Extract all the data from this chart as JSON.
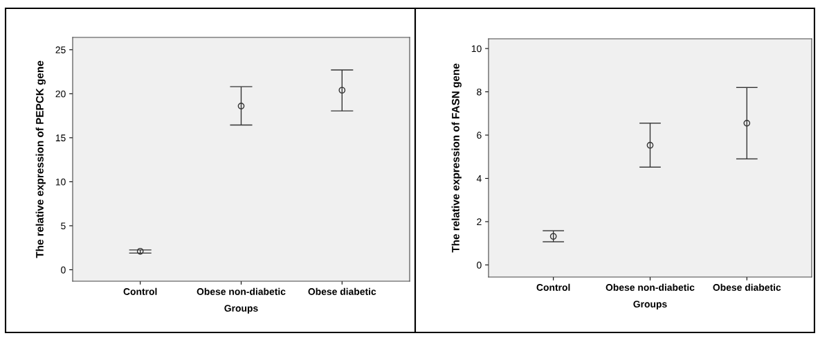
{
  "chart_data": [
    {
      "type": "scatter",
      "xlabel": "Groups",
      "ylabel": "The relative expression of PEPCK gene",
      "categories": [
        "Control",
        "Obese non-diabetic",
        "Obese diabetic"
      ],
      "series": [
        {
          "color": "#333333",
          "values": [
            2.1,
            18.6,
            20.4
          ],
          "errors": [
            [
              1.9,
              2.25
            ],
            [
              16.45,
              20.8
            ],
            [
              18.05,
              22.7
            ]
          ]
        }
      ],
      "ylim": [
        -1.3,
        26.4
      ],
      "yticks": [
        0,
        5,
        10,
        15,
        20,
        25
      ],
      "marker": "circle",
      "grid": false
    },
    {
      "type": "scatter",
      "xlabel": "Groups",
      "ylabel": "The relative expression of FASN gene",
      "categories": [
        "Control",
        "Obese non-diabetic",
        "Obese diabetic"
      ],
      "series": [
        {
          "color": "#333333",
          "values": [
            1.32,
            5.53,
            6.55
          ],
          "errors": [
            [
              1.07,
              1.58
            ],
            [
              4.52,
              6.55
            ],
            [
              4.9,
              8.2
            ]
          ]
        }
      ],
      "ylim": [
        -0.56,
        10.45
      ],
      "yticks": [
        0,
        2,
        4,
        6,
        8,
        10
      ],
      "marker": "circle",
      "grid": false
    }
  ]
}
